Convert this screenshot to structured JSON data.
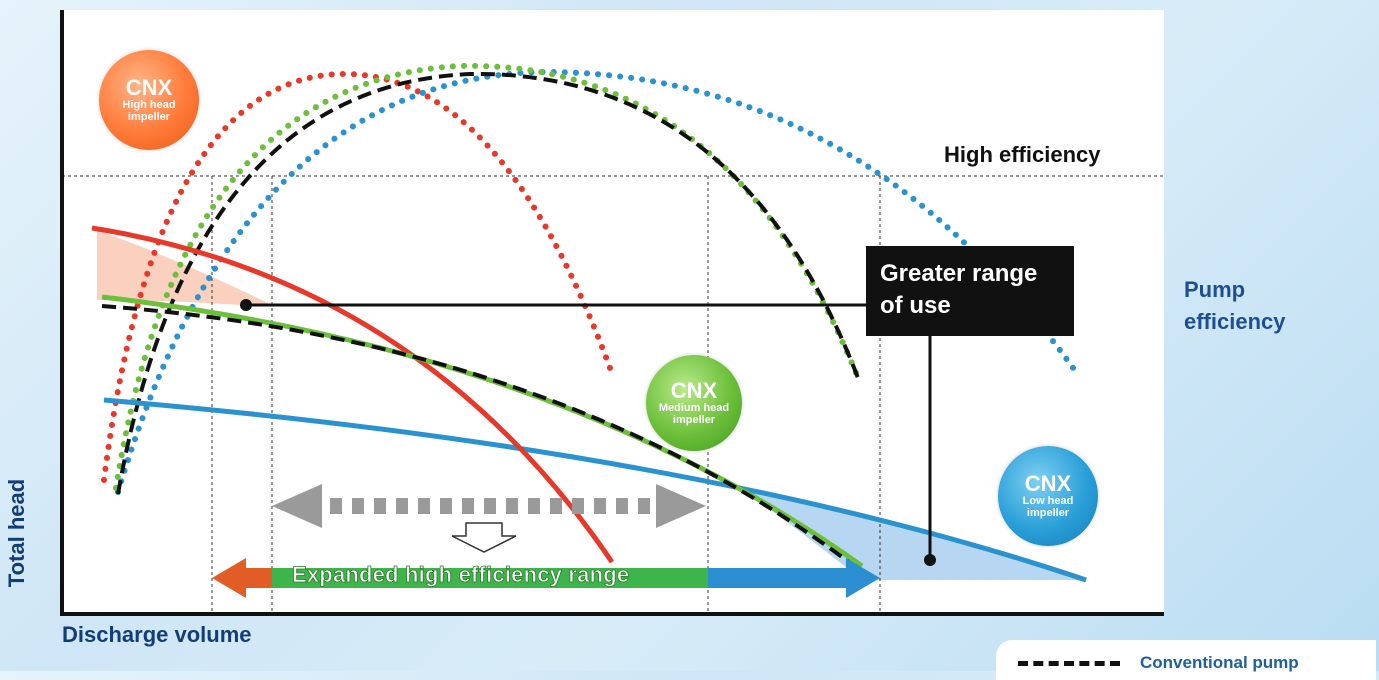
{
  "axes": {
    "y_label": "Total head",
    "x_label": "Discharge volume",
    "right_label_line1": "Pump",
    "right_label_line2": "efficiency"
  },
  "threshold_label": "High efficiency",
  "callout": {
    "line1": "Greater range",
    "line2": "of use"
  },
  "range_label": "Expanded high efficiency range",
  "badges": {
    "high": {
      "brand": "CNX",
      "line1": "High head",
      "line2": "impeller",
      "color": "#ff7a38"
    },
    "medium": {
      "brand": "CNX",
      "line1": "Medium head",
      "line2": "impeller",
      "color": "#6cbf3a"
    },
    "low": {
      "brand": "CNX",
      "line1": "Low head",
      "line2": "impeller",
      "color": "#2a9fd8"
    }
  },
  "legend": {
    "conventional": "Conventional pump"
  },
  "colors": {
    "high_head": "#e8382a",
    "medium_head": "#6cbf3a",
    "low_head": "#2a93cf",
    "conventional": "#111111",
    "gray_arrow": "#9a9a9a",
    "orange_arrow": "#e25c26",
    "green_bar": "#3db54a",
    "blue_arrow": "#2a8ed0"
  }
}
